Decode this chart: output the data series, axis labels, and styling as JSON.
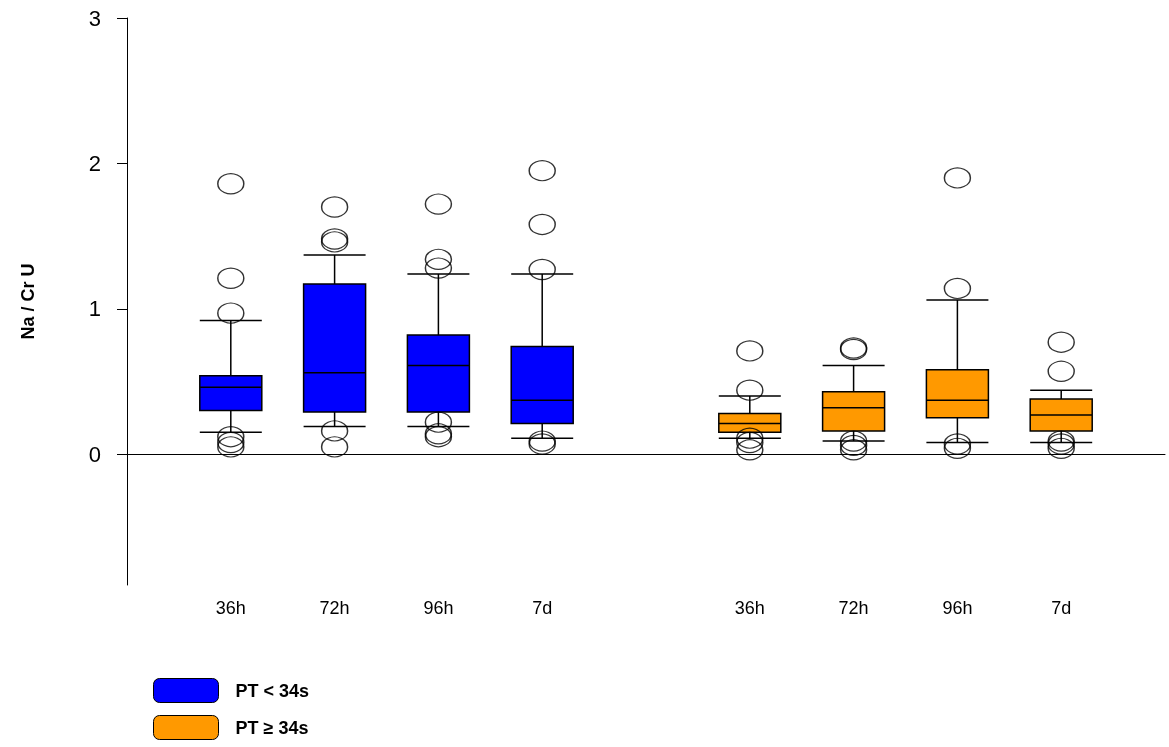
{
  "chart_data": {
    "type": "box",
    "ylabel": "Na / Cr U",
    "categories": [
      null,
      "36h",
      "72h",
      "96h",
      "7d",
      null,
      "36h",
      "72h",
      "96h",
      "7d",
      null
    ],
    "ylim": [
      -0.9,
      3
    ],
    "yticks": [
      0,
      1,
      2,
      3
    ],
    "legend": "bottom left",
    "marker": "circle",
    "series": [
      {
        "name": "PT < 34s",
        "color": "#0000ff",
        "boxes": [
          null,
          {
            "low": 0.15,
            "q1": 0.3,
            "median": 0.46,
            "q3": 0.54,
            "high": 0.92,
            "outliers": [
              1.86,
              1.21,
              0.97,
              0.12,
              0.08,
              0.05
            ]
          },
          {
            "low": 0.19,
            "q1": 0.29,
            "median": 0.56,
            "q3": 1.17,
            "high": 1.37,
            "outliers": [
              1.7,
              1.48,
              1.46,
              0.16,
              0.05
            ]
          },
          {
            "low": 0.19,
            "q1": 0.29,
            "median": 0.61,
            "q3": 0.82,
            "high": 1.24,
            "outliers": [
              1.72,
              1.34,
              1.28,
              0.22,
              0.14,
              0.12
            ]
          },
          {
            "low": 0.11,
            "q1": 0.21,
            "median": 0.37,
            "q3": 0.74,
            "high": 1.24,
            "outliers": [
              1.95,
              1.58,
              1.27,
              0.09,
              0.07
            ]
          },
          null,
          null,
          null,
          null,
          null,
          null
        ]
      },
      {
        "name": "PT ≥ 34s",
        "color": "#ff9900",
        "boxes": [
          null,
          null,
          null,
          null,
          null,
          null,
          {
            "low": 0.11,
            "q1": 0.15,
            "median": 0.21,
            "q3": 0.28,
            "high": 0.4,
            "outliers": [
              0.71,
              0.44,
              0.11,
              0.08,
              0.03
            ]
          },
          {
            "low": 0.09,
            "q1": 0.16,
            "median": 0.32,
            "q3": 0.43,
            "high": 0.61,
            "outliers": [
              0.73,
              0.72,
              0.09,
              0.06,
              0.03
            ]
          },
          {
            "low": 0.08,
            "q1": 0.25,
            "median": 0.37,
            "q3": 0.58,
            "high": 1.06,
            "outliers": [
              1.9,
              1.14,
              0.07,
              0.04
            ]
          },
          {
            "low": 0.08,
            "q1": 0.16,
            "median": 0.27,
            "q3": 0.38,
            "high": 0.44,
            "outliers": [
              0.77,
              0.57,
              0.09,
              0.07,
              0.04
            ]
          },
          null
        ]
      }
    ]
  }
}
